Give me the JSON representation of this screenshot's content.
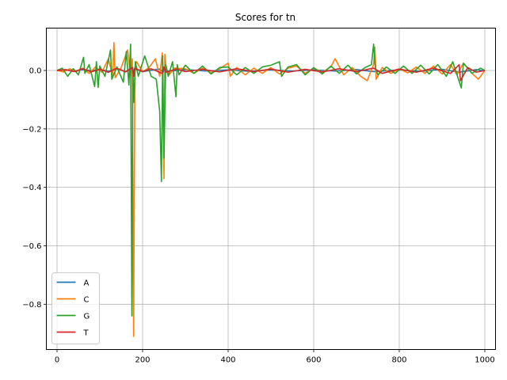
{
  "chart_data": {
    "type": "line",
    "title": "Scores for tn",
    "xlabel": "",
    "ylabel": "",
    "xlim": [
      -25,
      1025
    ],
    "ylim": [
      -0.955,
      0.145
    ],
    "x_ticks": [
      0,
      200,
      400,
      600,
      800,
      1000
    ],
    "x_tick_labels": [
      "0",
      "200",
      "400",
      "600",
      "800",
      "1000"
    ],
    "y_ticks": [
      0.0,
      -0.2,
      -0.4,
      -0.6,
      -0.8
    ],
    "y_tick_labels": [
      "0.0",
      "−0.2",
      "−0.4",
      "−0.6",
      "−0.8"
    ],
    "grid": true,
    "legend_position": "lower-left",
    "series": [
      {
        "name": "A",
        "color": "#1f77b4",
        "x": [
          0,
          20,
          40,
          60,
          80,
          100,
          120,
          140,
          160,
          175,
          178,
          181,
          200,
          240,
          248,
          252,
          256,
          300,
          350,
          400,
          450,
          500,
          550,
          600,
          650,
          700,
          740,
          800,
          850,
          900,
          940,
          980,
          1000
        ],
        "y": [
          0.0,
          0.002,
          -0.002,
          0.003,
          -0.001,
          0.004,
          -0.003,
          0.006,
          -0.004,
          0.005,
          -0.01,
          0.006,
          -0.004,
          0.005,
          -0.006,
          0.004,
          -0.003,
          0.003,
          -0.002,
          0.002,
          -0.003,
          0.002,
          -0.002,
          0.002,
          -0.002,
          0.003,
          -0.004,
          0.002,
          -0.003,
          0.004,
          -0.006,
          0.003,
          -0.002
        ]
      },
      {
        "name": "C",
        "color": "#ff7f0e",
        "x": [
          0,
          15,
          30,
          45,
          60,
          75,
          90,
          105,
          120,
          130,
          133,
          136,
          150,
          165,
          172,
          176,
          179,
          182,
          186,
          200,
          215,
          230,
          240,
          246,
          250,
          252,
          255,
          262,
          275,
          300,
          320,
          340,
          360,
          380,
          400,
          405,
          420,
          440,
          460,
          480,
          500,
          520,
          540,
          560,
          580,
          600,
          620,
          640,
          650,
          670,
          690,
          710,
          725,
          740,
          743,
          746,
          760,
          780,
          800,
          820,
          840,
          860,
          880,
          900,
          920,
          935,
          950,
          970,
          985,
          1000
        ],
        "y": [
          0.0,
          -0.005,
          0.006,
          -0.004,
          0.008,
          -0.01,
          0.012,
          -0.006,
          0.04,
          -0.02,
          0.095,
          -0.025,
          0.01,
          0.07,
          -0.02,
          0.04,
          -0.91,
          0.01,
          0.03,
          -0.005,
          0.01,
          0.04,
          -0.02,
          0.06,
          -0.37,
          0.055,
          0.01,
          -0.015,
          0.008,
          0.006,
          -0.01,
          0.008,
          -0.008,
          0.006,
          0.025,
          -0.02,
          0.01,
          -0.015,
          0.008,
          -0.01,
          0.01,
          -0.012,
          0.008,
          0.015,
          -0.01,
          0.008,
          -0.006,
          0.012,
          0.04,
          -0.015,
          0.01,
          -0.02,
          -0.035,
          0.02,
          0.08,
          -0.03,
          0.01,
          -0.01,
          0.005,
          -0.008,
          0.012,
          -0.01,
          0.015,
          -0.012,
          0.02,
          -0.015,
          0.025,
          -0.01,
          -0.03,
          0.0
        ]
      },
      {
        "name": "G",
        "color": "#2ca02c",
        "x": [
          0,
          12,
          25,
          38,
          50,
          62,
          65,
          75,
          88,
          92,
          96,
          100,
          112,
          125,
          128,
          140,
          155,
          162,
          168,
          172,
          175,
          177,
          180,
          183,
          190,
          205,
          220,
          232,
          240,
          244,
          247,
          250,
          254,
          260,
          270,
          278,
          281,
          285,
          300,
          320,
          340,
          360,
          380,
          400,
          420,
          440,
          460,
          480,
          500,
          520,
          525,
          540,
          560,
          580,
          600,
          620,
          640,
          660,
          680,
          700,
          720,
          735,
          740,
          744,
          750,
          770,
          790,
          810,
          830,
          850,
          870,
          890,
          910,
          925,
          935,
          945,
          950,
          970,
          990,
          1000
        ],
        "y": [
          0.0,
          0.008,
          -0.02,
          0.006,
          -0.015,
          0.045,
          -0.01,
          0.02,
          -0.055,
          0.03,
          -0.058,
          0.015,
          -0.02,
          0.07,
          -0.03,
          0.012,
          -0.04,
          0.065,
          -0.05,
          0.09,
          -0.84,
          0.01,
          -0.11,
          0.03,
          -0.02,
          0.05,
          -0.02,
          -0.03,
          -0.14,
          -0.38,
          0.05,
          -0.3,
          0.02,
          -0.02,
          0.03,
          -0.09,
          0.02,
          -0.015,
          0.018,
          -0.01,
          0.015,
          -0.012,
          0.01,
          0.012,
          -0.015,
          0.01,
          -0.01,
          0.012,
          0.018,
          0.03,
          -0.02,
          0.012,
          0.02,
          -0.015,
          0.01,
          -0.012,
          0.015,
          -0.01,
          0.018,
          -0.012,
          0.01,
          0.02,
          0.09,
          0.01,
          -0.015,
          0.012,
          -0.01,
          0.015,
          -0.01,
          0.018,
          -0.012,
          0.02,
          -0.02,
          0.03,
          -0.015,
          -0.06,
          0.025,
          -0.01,
          0.008,
          0.0
        ]
      },
      {
        "name": "T",
        "color": "#d62728",
        "x": [
          0,
          20,
          40,
          60,
          80,
          100,
          120,
          140,
          160,
          176,
          179,
          182,
          200,
          220,
          246,
          250,
          254,
          280,
          300,
          340,
          380,
          420,
          460,
          500,
          540,
          580,
          620,
          660,
          700,
          740,
          760,
          800,
          840,
          880,
          920,
          940,
          943,
          960,
          980,
          1000
        ],
        "y": [
          0.0,
          0.003,
          -0.004,
          0.006,
          -0.005,
          0.004,
          -0.006,
          0.008,
          -0.005,
          0.01,
          -0.02,
          0.008,
          -0.004,
          0.006,
          -0.01,
          0.012,
          -0.006,
          0.005,
          -0.004,
          0.004,
          -0.005,
          0.006,
          -0.004,
          0.005,
          -0.006,
          0.004,
          -0.005,
          0.006,
          -0.004,
          0.008,
          -0.01,
          0.005,
          -0.006,
          0.008,
          -0.01,
          0.02,
          -0.035,
          0.01,
          -0.006,
          0.0
        ]
      }
    ]
  }
}
